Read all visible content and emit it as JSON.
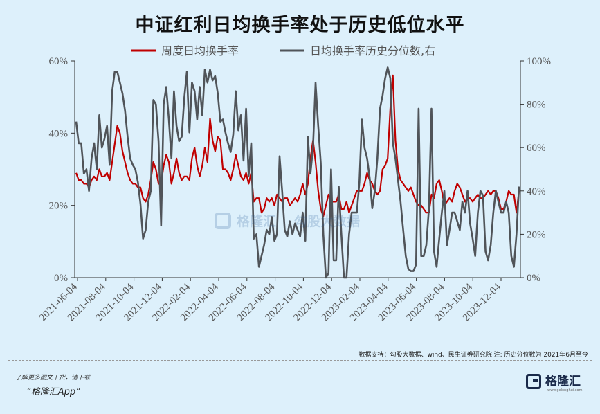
{
  "title": "中证红利日均换手率处于历史低位水平",
  "source": "数据支持：勾股大数据、wind、民生证券研究院 注: 历史分位数为 2021年6月至今",
  "footer": {
    "note": "了解更多图文干货，请下载",
    "app": "“格隆汇App”"
  },
  "brand": {
    "name": "格隆汇",
    "url": "www.gelonghui.com"
  },
  "watermark": {
    "left": "格隆汇",
    "right": "勾股大数据"
  },
  "colors": {
    "series1": "#c00000",
    "series2": "#505459",
    "background": "#ddf0fb"
  },
  "chart_data": {
    "type": "line",
    "legend": [
      "周度日均换手率",
      "日均换手率历史分位数,右"
    ],
    "legend_position": "top",
    "y_left": {
      "ticks": [
        "0%",
        "20%",
        "40%",
        "60%"
      ],
      "range": [
        0,
        60
      ]
    },
    "y_right": {
      "ticks": [
        "0%",
        "20%",
        "40%",
        "60%",
        "80%",
        "100%"
      ],
      "range": [
        0,
        100
      ]
    },
    "x_ticks": [
      "2021-06-04",
      "2021-08-04",
      "2021-10-04",
      "2021-12-04",
      "2022-02-04",
      "2022-04-04",
      "2022-06-04",
      "2022-08-04",
      "2022-10-04",
      "2022-12-04",
      "2023-02-04",
      "2023-04-04",
      "2023-06-04",
      "2023-08-04",
      "2023-10-04",
      "2023-12-04"
    ],
    "series": [
      {
        "name": "周度日均换手率",
        "axis": "left",
        "values": [
          29,
          27,
          27,
          26,
          26,
          25,
          27,
          28,
          27,
          30,
          28,
          28,
          29,
          27,
          32,
          37,
          42,
          40,
          35,
          32,
          29,
          27,
          26,
          26,
          25,
          25,
          22,
          21,
          23,
          27,
          32,
          30,
          26,
          26,
          31,
          34,
          32,
          26,
          29,
          33,
          29,
          27,
          28,
          28,
          27,
          33,
          36,
          31,
          28,
          31,
          36,
          32,
          44,
          38,
          35,
          39,
          38,
          30,
          30,
          29,
          27,
          30,
          34,
          31,
          28,
          27,
          29,
          26,
          29,
          21,
          22,
          22,
          18,
          19,
          22,
          21,
          22,
          20,
          23,
          22,
          21,
          22,
          22,
          20,
          21,
          22,
          21,
          23,
          26,
          23,
          26,
          33,
          38,
          32,
          24,
          19,
          17,
          20,
          23,
          21,
          21,
          21,
          23,
          19,
          19,
          21,
          18,
          20,
          22,
          24,
          24,
          24,
          26,
          29,
          27,
          26,
          24,
          23,
          24,
          30,
          31,
          33,
          47,
          56,
          38,
          30,
          27,
          26,
          25,
          24,
          25,
          23,
          21,
          20,
          20,
          19,
          18,
          18,
          23,
          22,
          26,
          27,
          24,
          20,
          21,
          22,
          21,
          24,
          26,
          25,
          23,
          21,
          22,
          22,
          21,
          22,
          23,
          22,
          22,
          23,
          24,
          23,
          24,
          24,
          22,
          19,
          19,
          21,
          24,
          23,
          23,
          18,
          24
        ]
      },
      {
        "name": "日均换手率历史分位数,右",
        "axis": "right",
        "values": [
          72,
          62,
          62,
          48,
          50,
          40,
          55,
          62,
          50,
          75,
          60,
          64,
          70,
          52,
          86,
          95,
          95,
          90,
          85,
          77,
          65,
          55,
          52,
          50,
          44,
          34,
          18,
          22,
          35,
          40,
          82,
          80,
          63,
          24,
          80,
          88,
          73,
          55,
          86,
          70,
          63,
          65,
          83,
          95,
          67,
          90,
          86,
          73,
          88,
          75,
          96,
          90,
          96,
          91,
          93,
          85,
          72,
          73,
          67,
          62,
          58,
          66,
          86,
          68,
          75,
          54,
          78,
          47,
          62,
          18,
          20,
          5,
          10,
          15,
          22,
          20,
          28,
          17,
          20,
          56,
          40,
          22,
          19,
          26,
          20,
          25,
          22,
          19,
          30,
          17,
          65,
          48,
          60,
          90,
          70,
          53,
          20,
          0,
          2,
          50,
          8,
          8,
          42,
          20,
          0,
          0,
          20,
          30,
          30,
          30,
          44,
          73,
          60,
          55,
          46,
          32,
          40,
          55,
          78,
          84,
          92,
          97,
          92,
          62,
          55,
          45,
          35,
          22,
          10,
          4,
          3,
          3,
          6,
          78,
          10,
          10,
          15,
          32,
          78,
          12,
          5,
          18,
          30,
          40,
          15,
          22,
          30,
          30,
          26,
          22,
          35,
          30,
          40,
          25,
          18,
          10,
          30,
          40,
          38,
          12,
          8,
          15,
          30,
          40,
          35,
          30,
          30,
          35,
          30,
          10,
          5,
          20,
          42
        ]
      }
    ]
  }
}
